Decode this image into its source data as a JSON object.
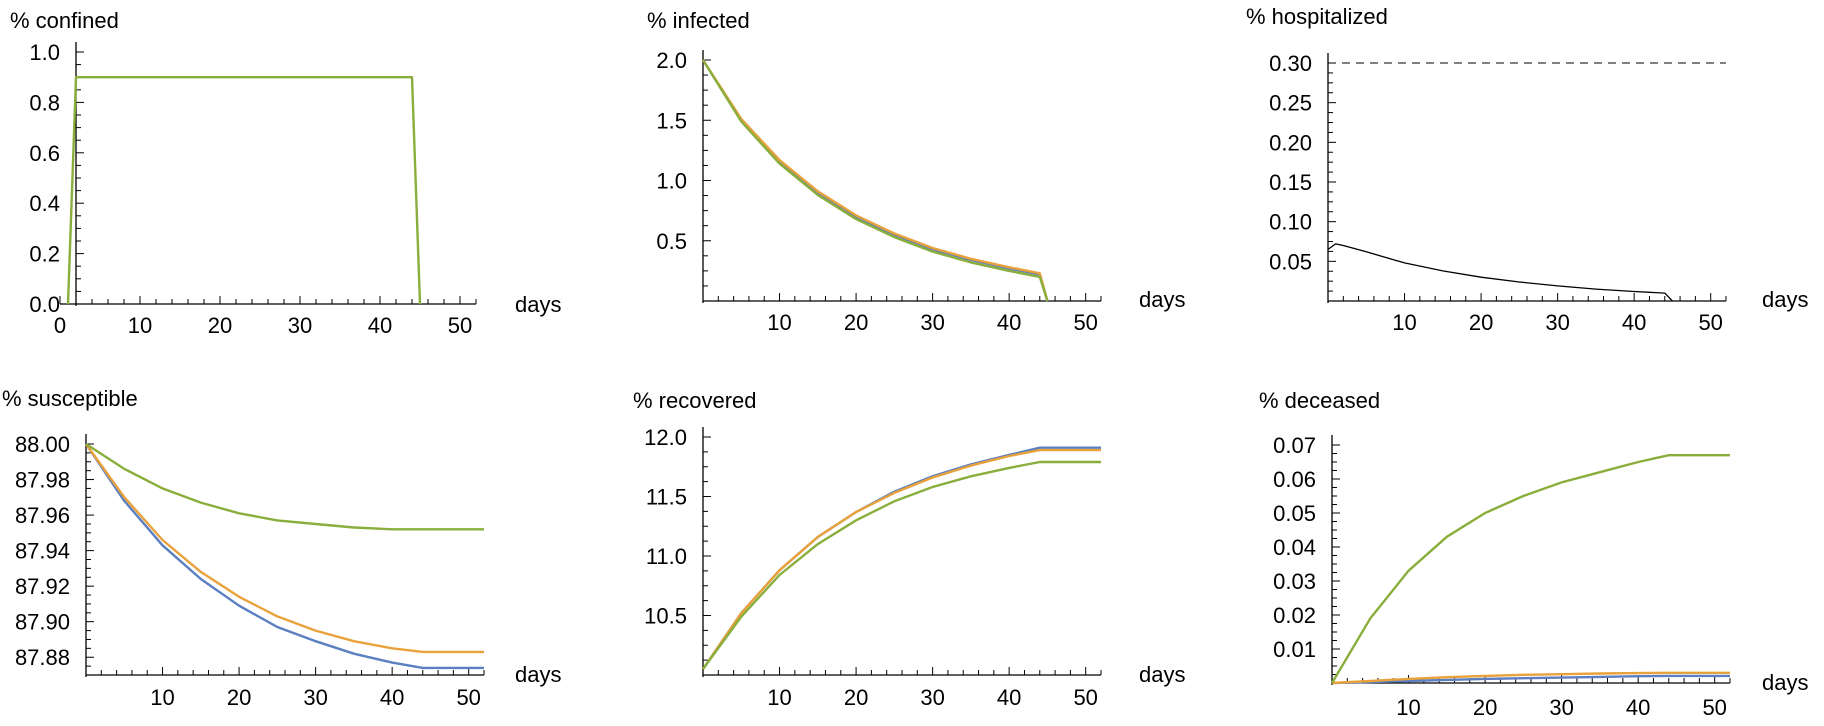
{
  "colors": {
    "blue": "#5b7fc0",
    "orange": "#e9a23b",
    "green": "#8aae3c",
    "black": "#000000"
  },
  "chart_data": [
    {
      "type": "line",
      "title": "% confined",
      "xlabel": "days",
      "xlim": [
        0,
        52
      ],
      "ylim": [
        0,
        1.0
      ],
      "xticks": [
        "0",
        "10",
        "20",
        "30",
        "40",
        "50"
      ],
      "yticks": [
        "0.0",
        "0.2",
        "0.4",
        "0.6",
        "0.8",
        "1.0"
      ],
      "series": [
        {
          "color": "green",
          "x": [
            1,
            2,
            44,
            45
          ],
          "y": [
            0,
            0.9,
            0.9,
            0
          ]
        }
      ]
    },
    {
      "type": "line",
      "title": "% infected",
      "xlabel": "days",
      "xlim": [
        0,
        52
      ],
      "ylim": [
        0,
        2.0
      ],
      "xticks": [
        "10",
        "20",
        "30",
        "40",
        "50"
      ],
      "yticks": [
        "0.5",
        "1.0",
        "1.5",
        "2.0"
      ],
      "series": [
        {
          "color": "blue",
          "x": [
            0,
            5,
            10,
            15,
            20,
            25,
            30,
            35,
            40,
            44,
            45
          ],
          "y": [
            2.0,
            1.5,
            1.16,
            0.9,
            0.7,
            0.55,
            0.43,
            0.34,
            0.27,
            0.22,
            0
          ]
        },
        {
          "color": "orange",
          "x": [
            0,
            5,
            10,
            15,
            20,
            25,
            30,
            35,
            40,
            44,
            45
          ],
          "y": [
            2.0,
            1.51,
            1.17,
            0.91,
            0.71,
            0.56,
            0.44,
            0.35,
            0.28,
            0.23,
            0
          ]
        },
        {
          "color": "green",
          "x": [
            0,
            5,
            10,
            15,
            20,
            25,
            30,
            35,
            40,
            44,
            45
          ],
          "y": [
            2.0,
            1.49,
            1.14,
            0.88,
            0.68,
            0.53,
            0.41,
            0.32,
            0.25,
            0.2,
            0
          ]
        }
      ]
    },
    {
      "type": "line",
      "title": "% hospitalized",
      "xlabel": "days",
      "xlim": [
        0,
        52
      ],
      "ylim": [
        0,
        0.3
      ],
      "xticks": [
        "10",
        "20",
        "30",
        "40",
        "50"
      ],
      "yticks": [
        "0.05",
        "0.10",
        "0.15",
        "0.20",
        "0.25",
        "0.30"
      ],
      "reference_line": {
        "y": 0.3,
        "style": "dashed"
      },
      "series": [
        {
          "color": "black",
          "x": [
            0,
            1,
            2,
            5,
            10,
            15,
            20,
            25,
            30,
            35,
            40,
            44,
            45
          ],
          "y": [
            0.065,
            0.072,
            0.07,
            0.062,
            0.048,
            0.038,
            0.03,
            0.024,
            0.019,
            0.015,
            0.012,
            0.01,
            0
          ]
        }
      ]
    },
    {
      "type": "line",
      "title": "% susceptible",
      "xlabel": "days",
      "xlim": [
        0,
        52
      ],
      "ylim": [
        87.87,
        88.0
      ],
      "xticks": [
        "10",
        "20",
        "30",
        "40",
        "50"
      ],
      "yticks": [
        "87.88",
        "87.90",
        "87.92",
        "87.94",
        "87.96",
        "87.98",
        "88.00"
      ],
      "series": [
        {
          "color": "blue",
          "x": [
            0,
            5,
            10,
            15,
            20,
            25,
            30,
            35,
            40,
            44,
            52
          ],
          "y": [
            88.0,
            87.968,
            87.943,
            87.924,
            87.909,
            87.897,
            87.889,
            87.882,
            87.877,
            87.874,
            87.874
          ]
        },
        {
          "color": "orange",
          "x": [
            0,
            5,
            10,
            15,
            20,
            25,
            30,
            35,
            40,
            44,
            52
          ],
          "y": [
            88.0,
            87.97,
            87.946,
            87.928,
            87.914,
            87.903,
            87.895,
            87.889,
            87.885,
            87.883,
            87.883
          ]
        },
        {
          "color": "green",
          "x": [
            0,
            5,
            10,
            15,
            20,
            25,
            30,
            35,
            40,
            44,
            52
          ],
          "y": [
            88.0,
            87.986,
            87.975,
            87.967,
            87.961,
            87.957,
            87.955,
            87.953,
            87.952,
            87.952,
            87.952
          ]
        }
      ]
    },
    {
      "type": "line",
      "title": "% recovered",
      "xlabel": "days",
      "xlim": [
        0,
        52
      ],
      "ylim": [
        10.0,
        12.0
      ],
      "xticks": [
        "10",
        "20",
        "30",
        "40",
        "50"
      ],
      "yticks": [
        "10.5",
        "11.0",
        "11.5",
        "12.0"
      ],
      "series": [
        {
          "color": "blue",
          "x": [
            0,
            5,
            10,
            15,
            20,
            25,
            30,
            35,
            40,
            44,
            52
          ],
          "y": [
            10.05,
            10.52,
            10.88,
            11.16,
            11.37,
            11.54,
            11.67,
            11.77,
            11.85,
            11.91,
            11.91
          ]
        },
        {
          "color": "orange",
          "x": [
            0,
            5,
            10,
            15,
            20,
            25,
            30,
            35,
            40,
            44,
            52
          ],
          "y": [
            10.05,
            10.52,
            10.88,
            11.16,
            11.37,
            11.53,
            11.66,
            11.76,
            11.84,
            11.89,
            11.89
          ]
        },
        {
          "color": "green",
          "x": [
            0,
            5,
            10,
            15,
            20,
            25,
            30,
            35,
            40,
            44,
            52
          ],
          "y": [
            10.05,
            10.49,
            10.84,
            11.1,
            11.3,
            11.46,
            11.58,
            11.67,
            11.74,
            11.79,
            11.79
          ]
        }
      ]
    },
    {
      "type": "line",
      "title": "% deceased",
      "xlabel": "days",
      "xlim": [
        0,
        52
      ],
      "ylim": [
        0,
        0.07
      ],
      "xticks": [
        "10",
        "20",
        "30",
        "40",
        "50"
      ],
      "yticks": [
        "0.01",
        "0.02",
        "0.03",
        "0.04",
        "0.05",
        "0.06",
        "0.07"
      ],
      "series": [
        {
          "color": "blue",
          "x": [
            0,
            5,
            10,
            15,
            20,
            25,
            30,
            35,
            40,
            44,
            52
          ],
          "y": [
            0,
            0.0003,
            0.0006,
            0.0009,
            0.0012,
            0.0014,
            0.0016,
            0.0018,
            0.002,
            0.0021,
            0.0021
          ]
        },
        {
          "color": "orange",
          "x": [
            0,
            5,
            10,
            15,
            20,
            25,
            30,
            35,
            40,
            44,
            52
          ],
          "y": [
            0,
            0.0006,
            0.0012,
            0.0017,
            0.0021,
            0.0024,
            0.0026,
            0.0028,
            0.0029,
            0.003,
            0.003
          ]
        },
        {
          "color": "green",
          "x": [
            0,
            5,
            10,
            15,
            20,
            25,
            30,
            35,
            40,
            44,
            52
          ],
          "y": [
            0,
            0.019,
            0.033,
            0.043,
            0.05,
            0.055,
            0.059,
            0.062,
            0.065,
            0.067,
            0.067
          ]
        }
      ]
    }
  ]
}
